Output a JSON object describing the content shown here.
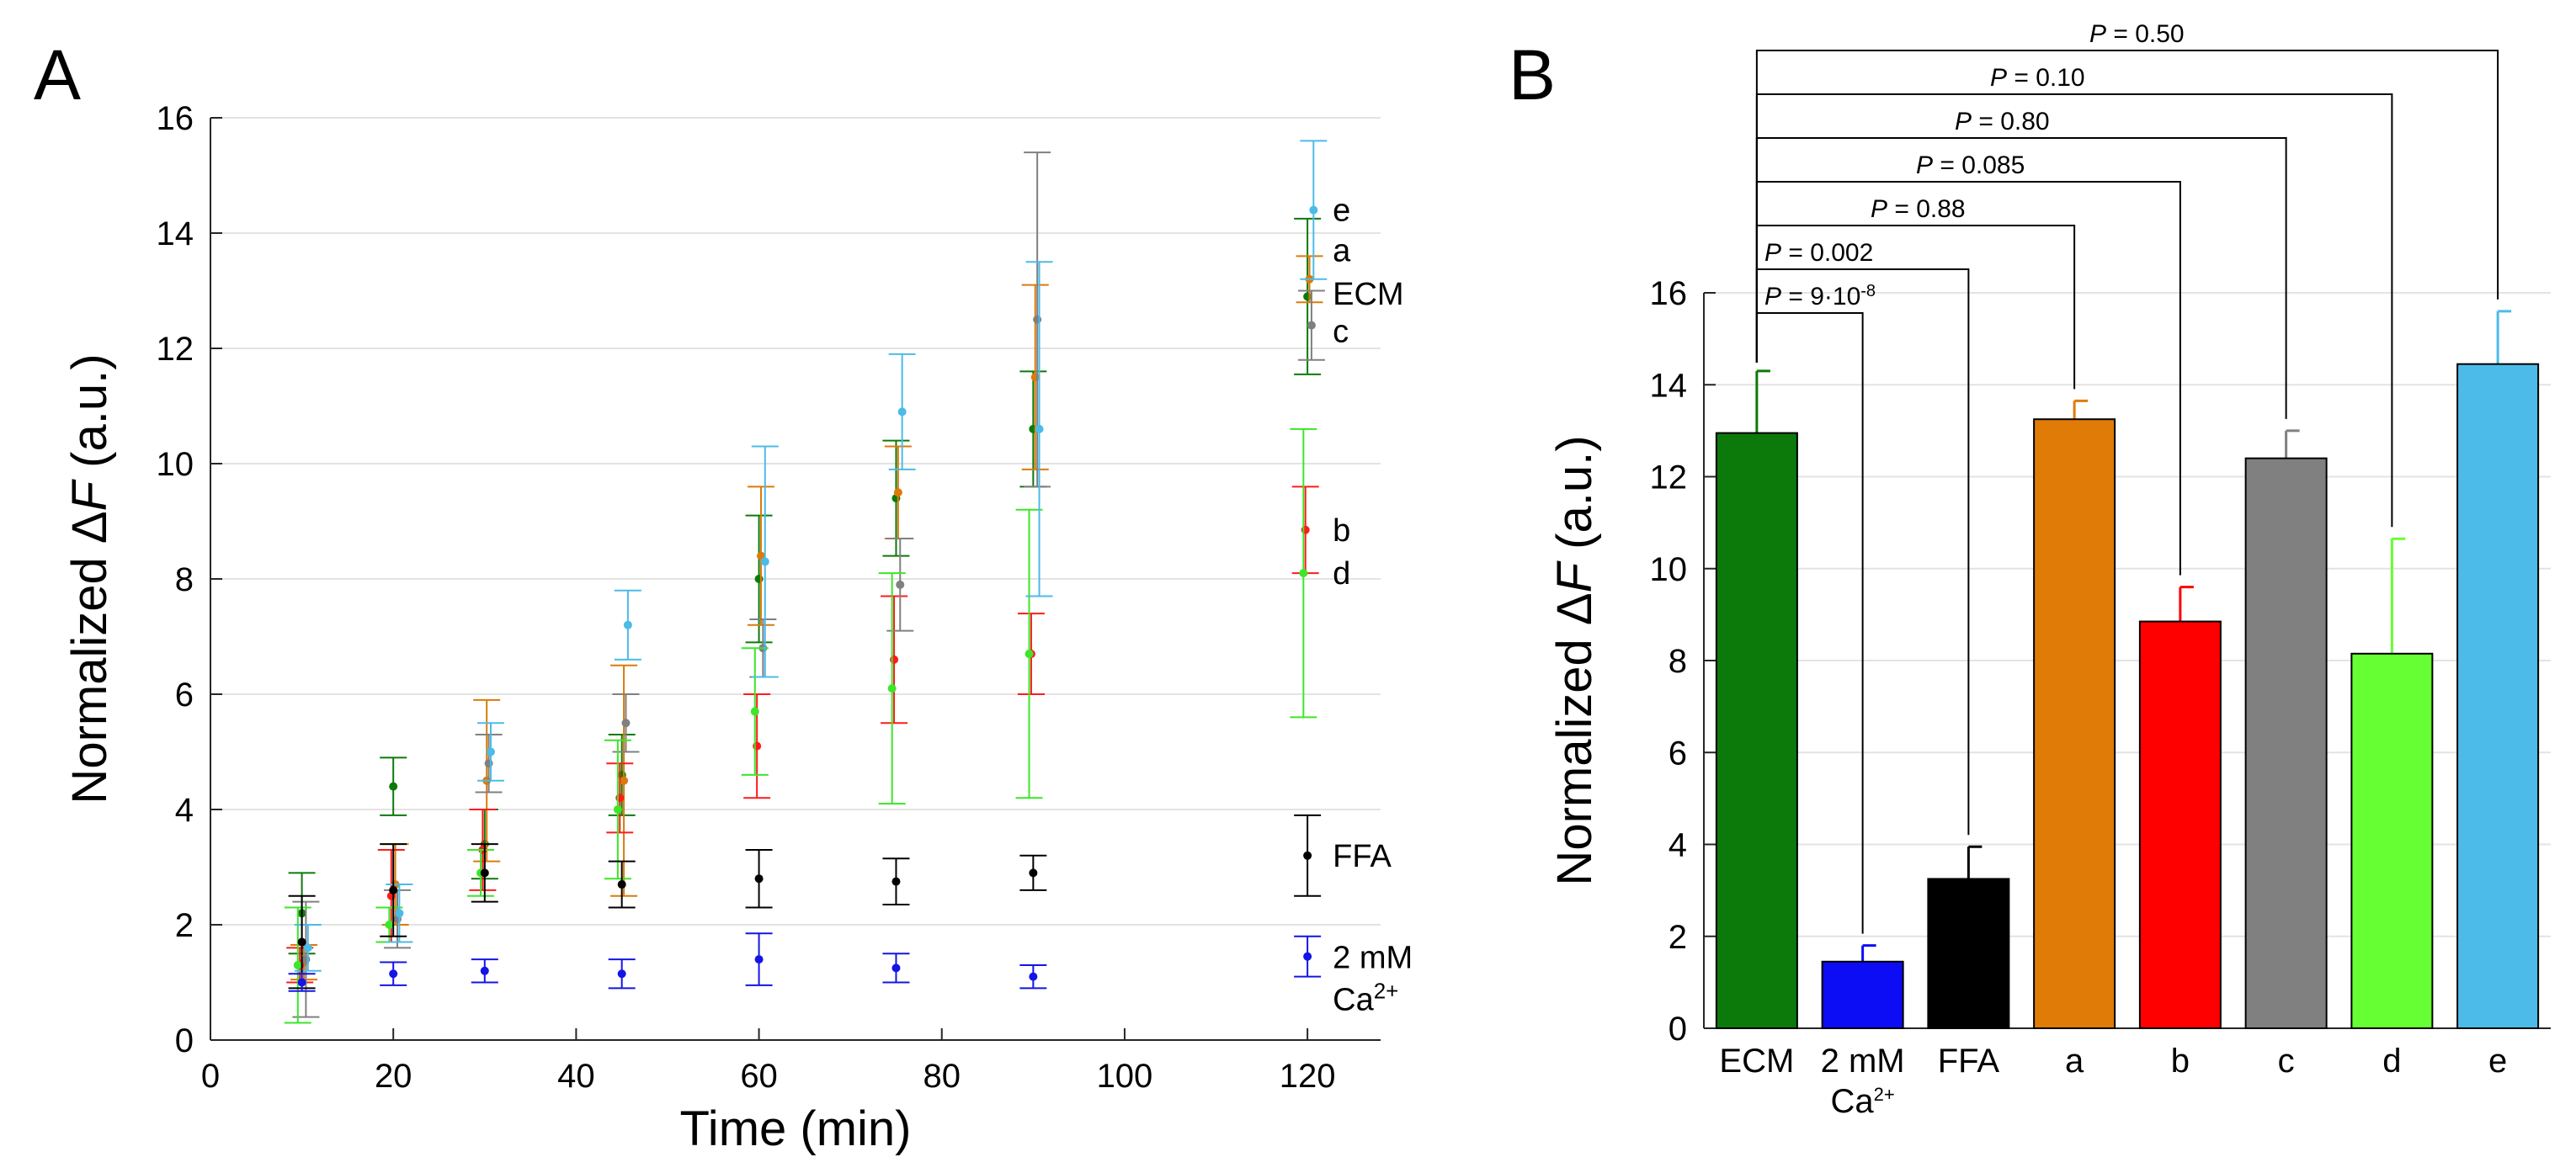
{
  "figure": {
    "panel_a_letter": "A",
    "panel_b_letter": "B"
  },
  "colors": {
    "ECM": "#0b7a0b",
    "Ca": "#1414e6",
    "FFA": "#000000",
    "a": "#dc7a0a",
    "b": "#ff1b1b",
    "c": "#808080",
    "d": "#3ce628",
    "e": "#4bbbe8",
    "bar_ECM": "#0b7a0b",
    "bar_Ca": "#0c0cf5",
    "bar_FFA": "#000000",
    "bar_a": "#df7b06",
    "bar_b": "#ff0000",
    "bar_c": "#808080",
    "bar_d": "#66ff33",
    "bar_e": "#4dbbe9",
    "bracket": "#000000"
  },
  "chart_data": [
    {
      "id": "A",
      "type": "scatter",
      "xlabel": "Time (min)",
      "ylabel_prefix": "Normalized ",
      "ylabel_delta": "Δ",
      "ylabel_var": "F",
      "ylabel_suffix": " (a.u.)",
      "xlim": [
        0,
        128
      ],
      "ylim": [
        0,
        16
      ],
      "xticks": [
        0,
        20,
        40,
        60,
        80,
        100,
        120
      ],
      "yticks": [
        0,
        2,
        4,
        6,
        8,
        10,
        12,
        14,
        16
      ],
      "grid": true,
      "series": [
        {
          "key": "ECM",
          "label": "ECM",
          "color_key": "ECM",
          "x": [
            10,
            20,
            30,
            45,
            60,
            75,
            90,
            120
          ],
          "y": [
            2.2,
            4.4,
            3.4,
            4.6,
            8.0,
            9.4,
            10.6,
            12.9
          ],
          "err": [
            0.7,
            0.5,
            0.6,
            0.7,
            1.1,
            1.0,
            1.0,
            1.35
          ]
        },
        {
          "key": "a",
          "label": "a",
          "color_key": "a",
          "x": [
            10,
            20,
            30,
            45,
            60,
            75,
            90,
            120
          ],
          "y": [
            1.35,
            2.7,
            4.5,
            4.5,
            8.4,
            9.5,
            11.5,
            13.2
          ],
          "err": [
            0.3,
            0.7,
            1.4,
            2.0,
            1.2,
            0.8,
            1.6,
            0.4
          ]
        },
        {
          "key": "b",
          "label": "b",
          "color_key": "b",
          "x": [
            10,
            20,
            30,
            45,
            60,
            75,
            90,
            120
          ],
          "y": [
            1.3,
            2.5,
            3.3,
            4.2,
            5.1,
            6.6,
            6.7,
            8.85
          ],
          "err": [
            0.3,
            0.8,
            0.7,
            0.6,
            0.9,
            1.1,
            0.7,
            0.75
          ]
        },
        {
          "key": "c",
          "label": "c",
          "color_key": "c",
          "x": [
            10,
            20,
            30,
            45,
            60,
            75,
            90,
            120
          ],
          "y": [
            1.4,
            2.1,
            4.8,
            5.5,
            6.8,
            7.9,
            12.5,
            12.4
          ],
          "err": [
            1.0,
            0.5,
            0.5,
            0.5,
            0.5,
            0.8,
            2.9,
            0.6
          ]
        },
        {
          "key": "d",
          "label": "d",
          "color_key": "d",
          "x": [
            10,
            20,
            30,
            45,
            60,
            75,
            90,
            120
          ],
          "y": [
            1.3,
            2.0,
            2.9,
            4.0,
            5.7,
            6.1,
            6.7,
            8.1
          ],
          "err": [
            1.0,
            0.3,
            0.4,
            1.2,
            1.1,
            2.0,
            2.5,
            2.5
          ]
        },
        {
          "key": "e",
          "label": "e",
          "color_key": "e",
          "x": [
            10,
            20,
            30,
            45,
            60,
            75,
            90,
            120
          ],
          "y": [
            1.6,
            2.2,
            5.0,
            7.2,
            8.3,
            10.9,
            10.6,
            14.4
          ],
          "err": [
            0.4,
            0.5,
            0.5,
            0.6,
            2.0,
            1.0,
            2.9,
            1.2
          ]
        },
        {
          "key": "FFA",
          "label": "FFA",
          "color_key": "FFA",
          "x": [
            10,
            20,
            30,
            45,
            60,
            75,
            90,
            120
          ],
          "y": [
            1.7,
            2.6,
            2.9,
            2.7,
            2.8,
            2.75,
            2.9,
            3.2
          ],
          "err": [
            0.8,
            0.8,
            0.5,
            0.4,
            0.5,
            0.4,
            0.3,
            0.7
          ]
        },
        {
          "key": "Ca",
          "label_line1": "2 mM",
          "label_line2": "Ca",
          "label_sup": "2+",
          "color_key": "Ca",
          "x": [
            10,
            20,
            30,
            45,
            60,
            75,
            90,
            120
          ],
          "y": [
            1.0,
            1.15,
            1.2,
            1.15,
            1.4,
            1.25,
            1.1,
            1.45
          ],
          "err": [
            0.15,
            0.2,
            0.2,
            0.25,
            0.45,
            0.25,
            0.2,
            0.35
          ]
        }
      ],
      "end_labels": [
        {
          "series": "e",
          "text": "e",
          "y": 14.4
        },
        {
          "series": "a",
          "text": "a",
          "y": 13.7
        },
        {
          "series": "ECM",
          "text": "ECM",
          "y": 12.95
        },
        {
          "series": "c",
          "text": "c",
          "y": 12.3
        },
        {
          "series": "b",
          "text": "b",
          "y": 8.85
        },
        {
          "series": "d",
          "text": "d",
          "y": 8.1
        },
        {
          "series": "FFA",
          "text": "FFA",
          "y": 3.2
        }
      ]
    },
    {
      "id": "B",
      "type": "bar",
      "ylabel_prefix": "Normalized ",
      "ylabel_delta": "Δ",
      "ylabel_var": "F",
      "ylabel_suffix": " (a.u.)",
      "ylim": [
        0,
        16
      ],
      "yticks": [
        0,
        2,
        4,
        6,
        8,
        10,
        12,
        14,
        16
      ],
      "grid": true,
      "categories": [
        {
          "key": "ECM",
          "label": "ECM",
          "value": 12.95,
          "err": 1.35,
          "color_key": "bar_ECM"
        },
        {
          "key": "Ca",
          "label_line1": "2 mM",
          "label_line2": "Ca",
          "label_sup": "2+",
          "value": 1.45,
          "err": 0.35,
          "color_key": "bar_Ca"
        },
        {
          "key": "FFA",
          "label": "FFA",
          "value": 3.25,
          "err": 0.7,
          "color_key": "bar_FFA"
        },
        {
          "key": "a",
          "label": "a",
          "value": 13.25,
          "err": 0.4,
          "color_key": "bar_a"
        },
        {
          "key": "b",
          "label": "b",
          "value": 8.85,
          "err": 0.75,
          "color_key": "bar_b"
        },
        {
          "key": "c",
          "label": "c",
          "value": 12.4,
          "err": 0.6,
          "color_key": "bar_c"
        },
        {
          "key": "d",
          "label": "d",
          "value": 8.15,
          "err": 2.5,
          "color_key": "bar_d"
        },
        {
          "key": "e",
          "label": "e",
          "value": 14.45,
          "err": 1.15,
          "color_key": "bar_e"
        }
      ],
      "comparisons": [
        {
          "target": "Ca",
          "p_letter": "P",
          "p_text": " = 9·10",
          "p_exp": "-8",
          "level": 0
        },
        {
          "target": "FFA",
          "p_letter": "P",
          "p_text": " = 0.002",
          "level": 1
        },
        {
          "target": "a",
          "p_letter": "P",
          "p_text": " = 0.88",
          "level": 2
        },
        {
          "target": "b",
          "p_letter": "P",
          "p_text": " = 0.085",
          "level": 3
        },
        {
          "target": "c",
          "p_letter": "P",
          "p_text": " = 0.80",
          "level": 4
        },
        {
          "target": "d",
          "p_letter": "P",
          "p_text": " = 0.10",
          "level": 5
        },
        {
          "target": "e",
          "p_letter": "P",
          "p_text": " = 0.50",
          "level": 6
        }
      ]
    }
  ]
}
